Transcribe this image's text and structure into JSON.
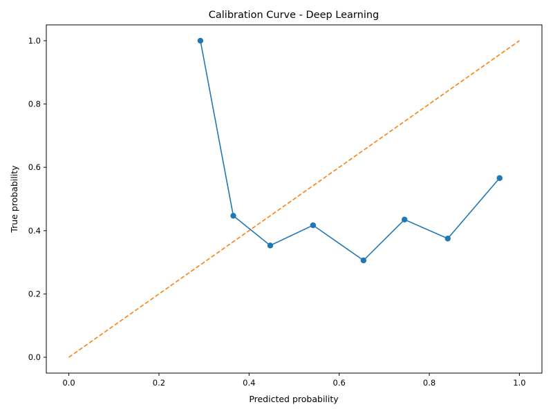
{
  "colors": {
    "calibration_line": "#1f77b4",
    "reference_line": "#ff7f0e",
    "axes": "#000000",
    "background": "#ffffff"
  },
  "chart_data": {
    "type": "line",
    "title": "Calibration Curve - Deep Learning",
    "xlabel": "Predicted probability",
    "ylabel": "True probability",
    "xlim": [
      -0.05,
      1.05
    ],
    "ylim": [
      -0.05,
      1.05
    ],
    "x_ticks": [
      0.0,
      0.2,
      0.4,
      0.6,
      0.8,
      1.0
    ],
    "y_ticks": [
      0.0,
      0.2,
      0.4,
      0.6,
      0.8,
      1.0
    ],
    "x_tick_labels": [
      "0.0",
      "0.2",
      "0.4",
      "0.6",
      "0.8",
      "1.0"
    ],
    "y_tick_labels": [
      "0.0",
      "0.2",
      "0.4",
      "0.6",
      "0.8",
      "1.0"
    ],
    "grid": false,
    "legend": "none",
    "series": [
      {
        "style": "solid line with circle markers",
        "color": "#1f77b4",
        "x": [
          0.292,
          0.365,
          0.447,
          0.542,
          0.654,
          0.745,
          0.841,
          0.956
        ],
        "y": [
          1.0,
          0.447,
          0.353,
          0.417,
          0.306,
          0.435,
          0.375,
          0.566
        ]
      },
      {
        "style": "dashed line",
        "color": "#ff7f0e",
        "x": [
          0.0,
          1.0
        ],
        "y": [
          0.0,
          1.0
        ]
      }
    ]
  }
}
